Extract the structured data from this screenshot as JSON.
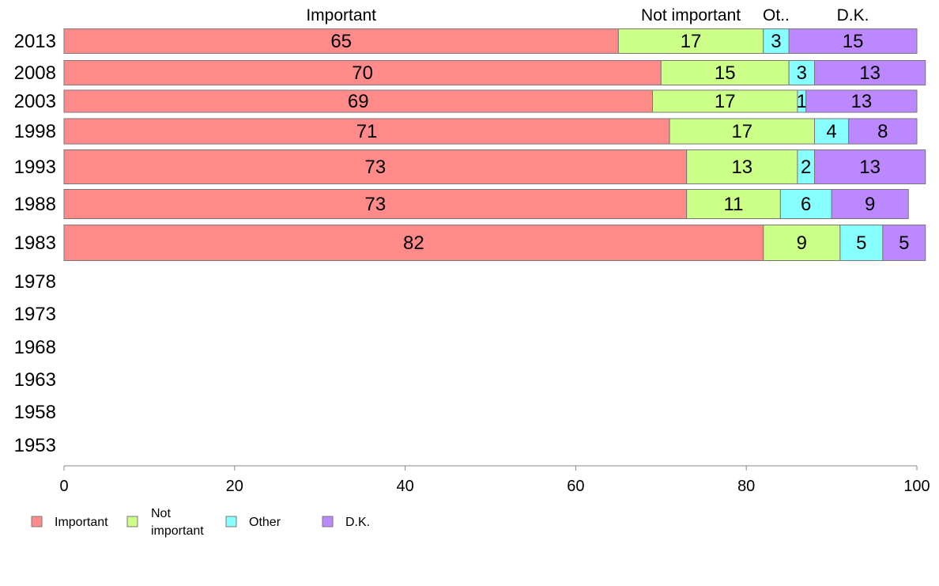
{
  "chart_data": {
    "type": "bar",
    "orientation": "horizontal",
    "stacked": true,
    "title": "",
    "xlabel": "",
    "ylabel": "",
    "xlim": [
      0,
      100
    ],
    "x_ticks": [
      0,
      20,
      40,
      60,
      80,
      100
    ],
    "grid": false,
    "legend_position": "bottom-left",
    "categories": [
      "2013",
      "2008",
      "2003",
      "1998",
      "1993",
      "1988",
      "1983",
      "1978",
      "1973",
      "1968",
      "1963",
      "1958",
      "1953"
    ],
    "series": [
      {
        "name": "Important",
        "color": "#ff8a8a",
        "values": [
          65,
          70,
          69,
          71,
          73,
          73,
          82,
          null,
          null,
          null,
          null,
          null,
          null
        ]
      },
      {
        "name": "Not important",
        "color": "#ccff88",
        "values": [
          17,
          15,
          17,
          17,
          13,
          11,
          9,
          null,
          null,
          null,
          null,
          null,
          null
        ]
      },
      {
        "name": "Other",
        "color": "#88ffff",
        "values": [
          3,
          3,
          1,
          4,
          2,
          6,
          5,
          null,
          null,
          null,
          null,
          null,
          null
        ]
      },
      {
        "name": "D.K.",
        "color": "#bb88ff",
        "values": [
          15,
          13,
          13,
          8,
          13,
          9,
          5,
          null,
          null,
          null,
          null,
          null,
          null
        ]
      }
    ],
    "top_labels": [
      "Important",
      "Not important",
      "Ot..",
      "D.K."
    ],
    "legend_labels": [
      [
        "Important"
      ],
      [
        "Not",
        "important"
      ],
      [
        "Other"
      ],
      [
        "D.K."
      ]
    ]
  }
}
